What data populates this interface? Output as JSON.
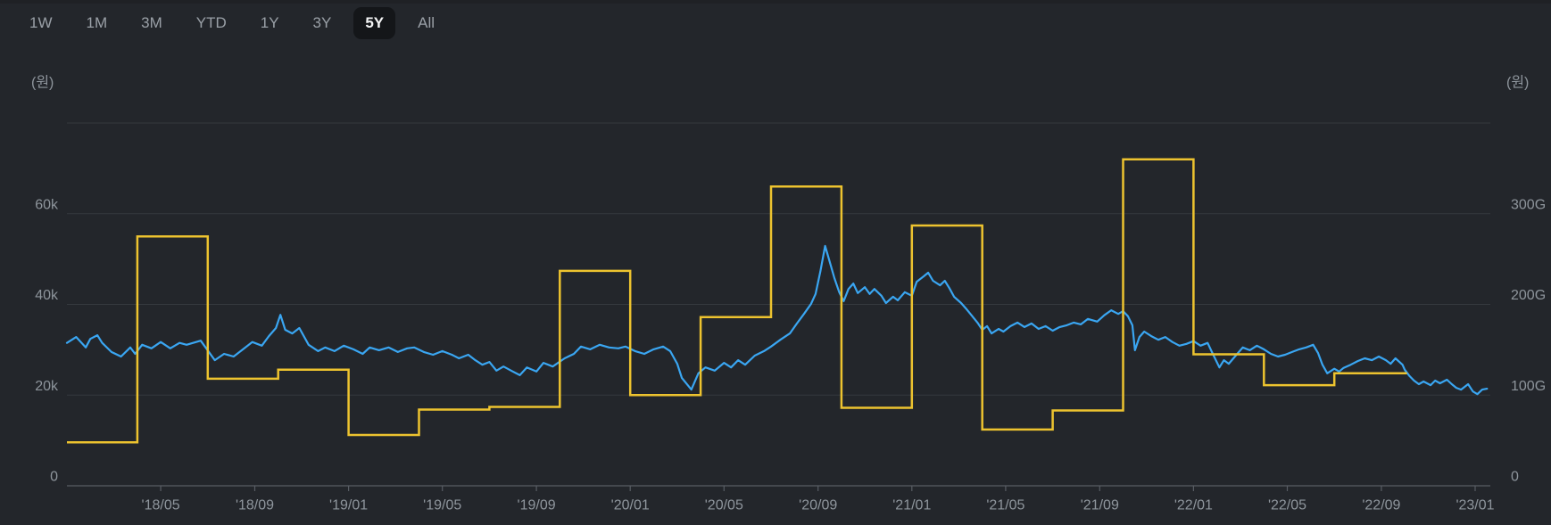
{
  "tabs": {
    "items": [
      {
        "label": "1W",
        "selected": false
      },
      {
        "label": "1M",
        "selected": false
      },
      {
        "label": "3M",
        "selected": false
      },
      {
        "label": "YTD",
        "selected": false
      },
      {
        "label": "1Y",
        "selected": false
      },
      {
        "label": "3Y",
        "selected": false
      },
      {
        "label": "5Y",
        "selected": true
      },
      {
        "label": "All",
        "selected": false
      }
    ]
  },
  "colors": {
    "background": "#23262B",
    "grid": "#35393E",
    "axis": "#585D64",
    "axis_text": "#8E959C",
    "tab_text": "#9AA0A7",
    "tab_selected_bg": "#141619",
    "tab_selected_text": "#F4F5F6",
    "price_line": "#3AA6F2",
    "step_line": "#EDC32F"
  },
  "chart_data": {
    "type": "line",
    "title": "",
    "legend": "none",
    "grid": "horizontal",
    "x_axis": {
      "domain_decimal_years": [
        2018.0,
        2023.055
      ],
      "ticks": [
        {
          "t": 2018.333,
          "label": "'18/05"
        },
        {
          "t": 2018.667,
          "label": "'18/09"
        },
        {
          "t": 2019.0,
          "label": "'19/01"
        },
        {
          "t": 2019.333,
          "label": "'19/05"
        },
        {
          "t": 2019.667,
          "label": "'19/09"
        },
        {
          "t": 2020.0,
          "label": "'20/01"
        },
        {
          "t": 2020.333,
          "label": "'20/05"
        },
        {
          "t": 2020.667,
          "label": "'20/09"
        },
        {
          "t": 2021.0,
          "label": "'21/01"
        },
        {
          "t": 2021.333,
          "label": "'21/05"
        },
        {
          "t": 2021.667,
          "label": "'21/09"
        },
        {
          "t": 2022.0,
          "label": "'22/01"
        },
        {
          "t": 2022.333,
          "label": "'22/05"
        },
        {
          "t": 2022.667,
          "label": "'22/09"
        },
        {
          "t": 2023.0,
          "label": "'23/01"
        }
      ]
    },
    "left_y_axis": {
      "unit_label": "(원)",
      "value_unit": "thousand KRW",
      "range": [
        0,
        80
      ],
      "ticks": [
        {
          "v": 0,
          "label": "0"
        },
        {
          "v": 20,
          "label": "20k"
        },
        {
          "v": 40,
          "label": "40k"
        },
        {
          "v": 60,
          "label": "60k"
        },
        {
          "v": 80,
          "label": ""
        }
      ]
    },
    "right_y_axis": {
      "unit_label": "(원)",
      "value_unit": "billion KRW (G)",
      "range": [
        0,
        400
      ],
      "ticks": [
        {
          "v": 0,
          "label": "0"
        },
        {
          "v": 100,
          "label": "100G"
        },
        {
          "v": 200,
          "label": "200G"
        },
        {
          "v": 300,
          "label": "300G"
        },
        {
          "v": 400,
          "label": ""
        }
      ]
    },
    "series": [
      {
        "id": "quarterly-step",
        "style": "step-after",
        "axis": "right",
        "color": "#EDC32F",
        "value_unit": "billion KRW (G)",
        "end_t": 2022.758,
        "points": [
          [
            2018.0,
            48
          ],
          [
            2018.25,
            275
          ],
          [
            2018.5,
            118
          ],
          [
            2018.75,
            128
          ],
          [
            2019.0,
            56
          ],
          [
            2019.25,
            84
          ],
          [
            2019.5,
            87
          ],
          [
            2019.75,
            237
          ],
          [
            2020.0,
            100
          ],
          [
            2020.25,
            186
          ],
          [
            2020.5,
            330
          ],
          [
            2020.75,
            86
          ],
          [
            2021.0,
            287
          ],
          [
            2021.25,
            62
          ],
          [
            2021.5,
            83
          ],
          [
            2021.75,
            360
          ],
          [
            2022.0,
            145
          ],
          [
            2022.25,
            111
          ],
          [
            2022.5,
            124
          ]
        ]
      },
      {
        "id": "price-line",
        "style": "line",
        "axis": "left",
        "color": "#3AA6F2",
        "value_unit": "thousand KRW",
        "points": [
          [
            2018.0,
            31.5
          ],
          [
            2018.033,
            32.8
          ],
          [
            2018.067,
            30.5
          ],
          [
            2018.083,
            32.4
          ],
          [
            2018.108,
            33.2
          ],
          [
            2018.125,
            31.5
          ],
          [
            2018.158,
            29.5
          ],
          [
            2018.192,
            28.5
          ],
          [
            2018.225,
            30.5
          ],
          [
            2018.242,
            29.1
          ],
          [
            2018.267,
            31.1
          ],
          [
            2018.3,
            30.3
          ],
          [
            2018.333,
            31.7
          ],
          [
            2018.367,
            30.3
          ],
          [
            2018.4,
            31.5
          ],
          [
            2018.425,
            31.1
          ],
          [
            2018.475,
            32.0
          ],
          [
            2018.525,
            27.7
          ],
          [
            2018.558,
            29.1
          ],
          [
            2018.592,
            28.5
          ],
          [
            2018.625,
            30.1
          ],
          [
            2018.658,
            31.7
          ],
          [
            2018.692,
            30.9
          ],
          [
            2018.717,
            33.0
          ],
          [
            2018.742,
            34.8
          ],
          [
            2018.758,
            37.7
          ],
          [
            2018.775,
            34.4
          ],
          [
            2018.8,
            33.6
          ],
          [
            2018.825,
            34.8
          ],
          [
            2018.858,
            31.1
          ],
          [
            2018.892,
            29.7
          ],
          [
            2018.917,
            30.5
          ],
          [
            2018.95,
            29.7
          ],
          [
            2018.983,
            30.9
          ],
          [
            2019.017,
            30.1
          ],
          [
            2019.05,
            29.1
          ],
          [
            2019.075,
            30.5
          ],
          [
            2019.108,
            29.9
          ],
          [
            2019.142,
            30.5
          ],
          [
            2019.175,
            29.5
          ],
          [
            2019.208,
            30.3
          ],
          [
            2019.233,
            30.5
          ],
          [
            2019.267,
            29.5
          ],
          [
            2019.3,
            28.9
          ],
          [
            2019.333,
            29.7
          ],
          [
            2019.367,
            28.9
          ],
          [
            2019.392,
            28.1
          ],
          [
            2019.425,
            28.9
          ],
          [
            2019.45,
            27.7
          ],
          [
            2019.475,
            26.7
          ],
          [
            2019.5,
            27.3
          ],
          [
            2019.525,
            25.4
          ],
          [
            2019.55,
            26.3
          ],
          [
            2019.583,
            25.2
          ],
          [
            2019.608,
            24.4
          ],
          [
            2019.633,
            26.1
          ],
          [
            2019.667,
            25.2
          ],
          [
            2019.692,
            27.1
          ],
          [
            2019.725,
            26.3
          ],
          [
            2019.767,
            28.1
          ],
          [
            2019.8,
            29.1
          ],
          [
            2019.825,
            30.7
          ],
          [
            2019.858,
            30.1
          ],
          [
            2019.892,
            31.1
          ],
          [
            2019.925,
            30.5
          ],
          [
            2019.958,
            30.3
          ],
          [
            2019.983,
            30.7
          ],
          [
            2020.017,
            29.7
          ],
          [
            2020.05,
            29.1
          ],
          [
            2020.083,
            30.1
          ],
          [
            2020.117,
            30.7
          ],
          [
            2020.142,
            29.7
          ],
          [
            2020.167,
            26.9
          ],
          [
            2020.183,
            23.8
          ],
          [
            2020.217,
            21.2
          ],
          [
            2020.242,
            24.8
          ],
          [
            2020.267,
            26.1
          ],
          [
            2020.3,
            25.4
          ],
          [
            2020.333,
            27.1
          ],
          [
            2020.358,
            26.1
          ],
          [
            2020.383,
            27.7
          ],
          [
            2020.408,
            26.7
          ],
          [
            2020.442,
            28.7
          ],
          [
            2020.475,
            29.7
          ],
          [
            2020.5,
            30.7
          ],
          [
            2020.533,
            32.2
          ],
          [
            2020.567,
            33.6
          ],
          [
            2020.592,
            35.8
          ],
          [
            2020.617,
            37.9
          ],
          [
            2020.642,
            40.1
          ],
          [
            2020.658,
            42.3
          ],
          [
            2020.675,
            47.2
          ],
          [
            2020.692,
            52.9
          ],
          [
            2020.708,
            49.5
          ],
          [
            2020.725,
            45.8
          ],
          [
            2020.742,
            42.7
          ],
          [
            2020.758,
            40.7
          ],
          [
            2020.775,
            43.4
          ],
          [
            2020.792,
            44.6
          ],
          [
            2020.808,
            42.5
          ],
          [
            2020.833,
            43.8
          ],
          [
            2020.85,
            42.3
          ],
          [
            2020.867,
            43.4
          ],
          [
            2020.892,
            41.9
          ],
          [
            2020.908,
            40.3
          ],
          [
            2020.933,
            41.7
          ],
          [
            2020.95,
            40.9
          ],
          [
            2020.975,
            42.7
          ],
          [
            2021.0,
            41.9
          ],
          [
            2021.017,
            45.0
          ],
          [
            2021.042,
            46.2
          ],
          [
            2021.058,
            47.0
          ],
          [
            2021.075,
            45.2
          ],
          [
            2021.1,
            44.2
          ],
          [
            2021.117,
            45.2
          ],
          [
            2021.133,
            43.6
          ],
          [
            2021.15,
            41.7
          ],
          [
            2021.175,
            40.3
          ],
          [
            2021.192,
            39.1
          ],
          [
            2021.208,
            37.9
          ],
          [
            2021.233,
            36.0
          ],
          [
            2021.25,
            34.4
          ],
          [
            2021.267,
            35.2
          ],
          [
            2021.283,
            33.6
          ],
          [
            2021.308,
            34.6
          ],
          [
            2021.325,
            34.0
          ],
          [
            2021.35,
            35.2
          ],
          [
            2021.375,
            36.0
          ],
          [
            2021.4,
            35.0
          ],
          [
            2021.425,
            35.8
          ],
          [
            2021.45,
            34.6
          ],
          [
            2021.475,
            35.2
          ],
          [
            2021.5,
            34.2
          ],
          [
            2021.525,
            35.0
          ],
          [
            2021.55,
            35.4
          ],
          [
            2021.575,
            36.0
          ],
          [
            2021.6,
            35.6
          ],
          [
            2021.625,
            36.8
          ],
          [
            2021.658,
            36.2
          ],
          [
            2021.683,
            37.6
          ],
          [
            2021.708,
            38.7
          ],
          [
            2021.733,
            37.9
          ],
          [
            2021.75,
            38.5
          ],
          [
            2021.767,
            37.4
          ],
          [
            2021.783,
            35.4
          ],
          [
            2021.792,
            29.9
          ],
          [
            2021.808,
            32.8
          ],
          [
            2021.825,
            34.0
          ],
          [
            2021.85,
            33.0
          ],
          [
            2021.875,
            32.2
          ],
          [
            2021.9,
            32.8
          ],
          [
            2021.925,
            31.7
          ],
          [
            2021.95,
            30.9
          ],
          [
            2021.975,
            31.3
          ],
          [
            2022.0,
            31.9
          ],
          [
            2022.025,
            30.9
          ],
          [
            2022.05,
            31.5
          ],
          [
            2022.067,
            29.3
          ],
          [
            2022.092,
            26.1
          ],
          [
            2022.108,
            27.7
          ],
          [
            2022.125,
            26.9
          ],
          [
            2022.15,
            28.7
          ],
          [
            2022.175,
            30.5
          ],
          [
            2022.2,
            29.9
          ],
          [
            2022.225,
            30.9
          ],
          [
            2022.25,
            30.1
          ],
          [
            2022.275,
            29.1
          ],
          [
            2022.3,
            28.5
          ],
          [
            2022.325,
            28.9
          ],
          [
            2022.35,
            29.5
          ],
          [
            2022.375,
            30.1
          ],
          [
            2022.4,
            30.5
          ],
          [
            2022.425,
            31.1
          ],
          [
            2022.442,
            29.3
          ],
          [
            2022.458,
            26.7
          ],
          [
            2022.475,
            24.8
          ],
          [
            2022.5,
            25.8
          ],
          [
            2022.517,
            25.2
          ],
          [
            2022.533,
            26.0
          ],
          [
            2022.558,
            26.7
          ],
          [
            2022.583,
            27.5
          ],
          [
            2022.608,
            28.1
          ],
          [
            2022.633,
            27.7
          ],
          [
            2022.658,
            28.5
          ],
          [
            2022.683,
            27.7
          ],
          [
            2022.7,
            26.9
          ],
          [
            2022.717,
            28.1
          ],
          [
            2022.742,
            26.7
          ],
          [
            2022.75,
            25.6
          ],
          [
            2022.767,
            24.2
          ],
          [
            2022.783,
            23.2
          ],
          [
            2022.8,
            22.4
          ],
          [
            2022.817,
            23.0
          ],
          [
            2022.842,
            22.2
          ],
          [
            2022.858,
            23.2
          ],
          [
            2022.875,
            22.6
          ],
          [
            2022.9,
            23.4
          ],
          [
            2022.917,
            22.4
          ],
          [
            2022.933,
            21.6
          ],
          [
            2022.95,
            21.2
          ],
          [
            2022.975,
            22.4
          ],
          [
            2022.992,
            20.8
          ],
          [
            2023.008,
            20.2
          ],
          [
            2023.025,
            21.2
          ],
          [
            2023.042,
            21.4
          ]
        ]
      }
    ]
  }
}
